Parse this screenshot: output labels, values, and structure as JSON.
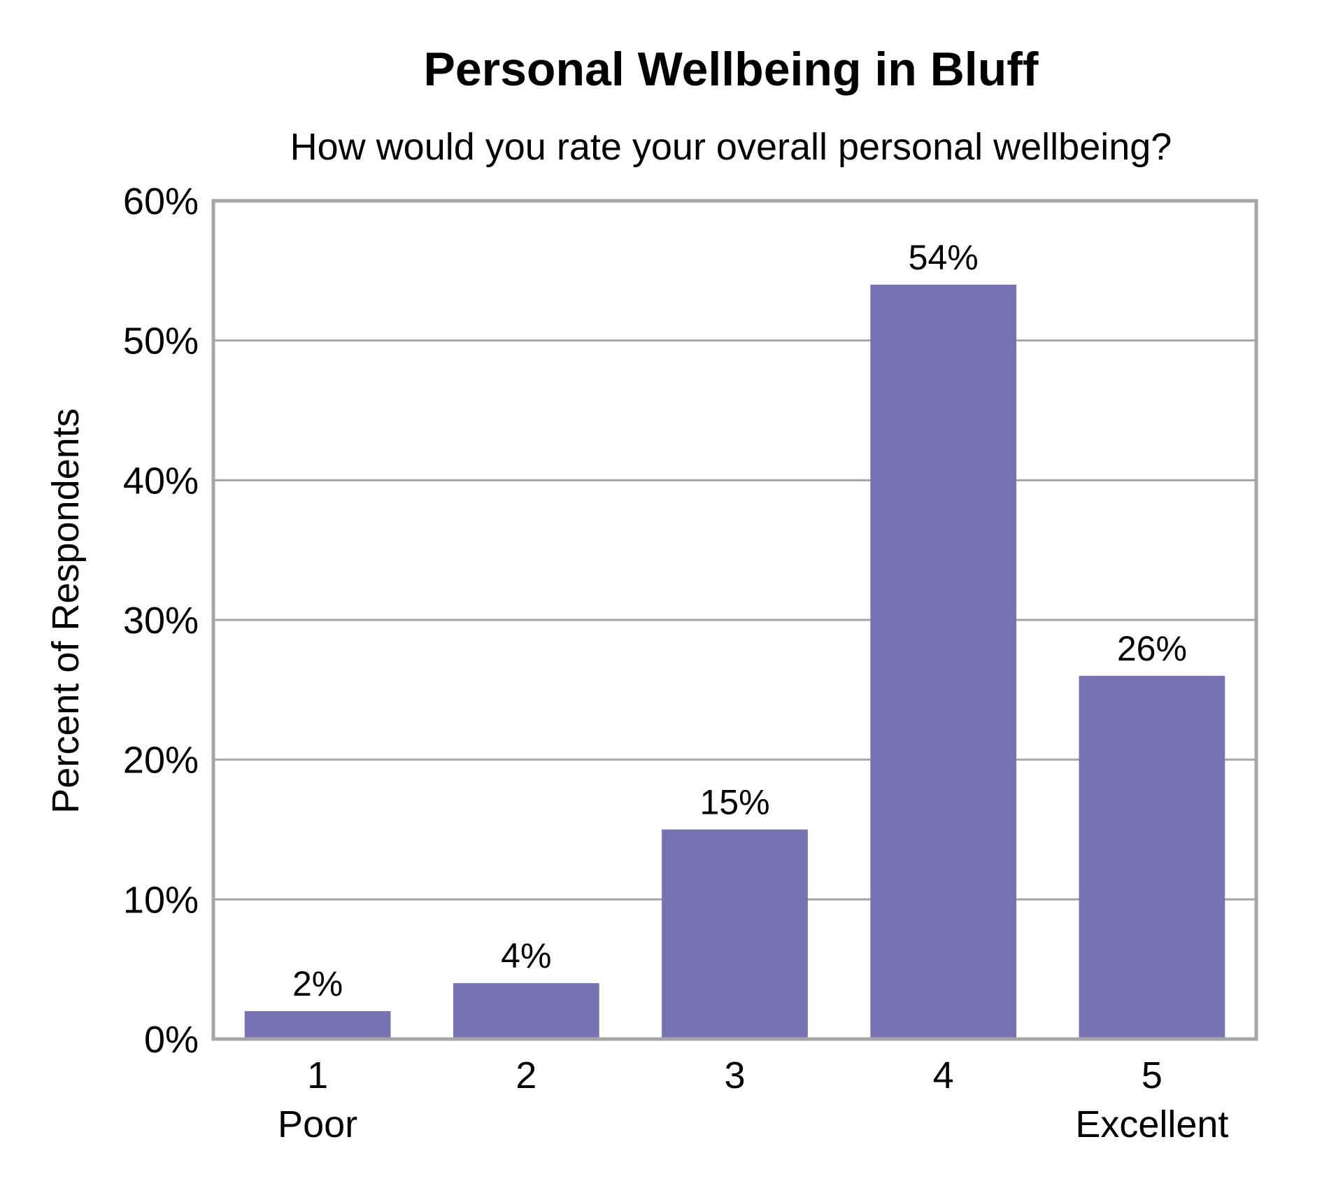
{
  "chart_data": {
    "type": "bar",
    "title": "Personal Wellbeing in Bluff",
    "subtitle": "How would you rate your overall personal wellbeing?",
    "ylabel": "Percent of Respondents",
    "xlabel": "",
    "categories": [
      "1",
      "2",
      "3",
      "4",
      "5"
    ],
    "category_sublabels": [
      "Poor",
      "",
      "",
      "",
      "Excellent"
    ],
    "values": [
      2,
      4,
      15,
      54,
      26
    ],
    "value_labels": [
      "2%",
      "4%",
      "15%",
      "54%",
      "26%"
    ],
    "ylim": [
      0,
      60
    ],
    "yticks": [
      0,
      10,
      20,
      30,
      40,
      50,
      60
    ],
    "ytick_labels": [
      "0%",
      "10%",
      "20%",
      "30%",
      "40%",
      "50%",
      "60%"
    ],
    "grid": true,
    "legend": "none",
    "colors": {
      "bar": "#7773B2",
      "frame": "#A6A6A6",
      "grid": "#A6A6A6"
    }
  }
}
